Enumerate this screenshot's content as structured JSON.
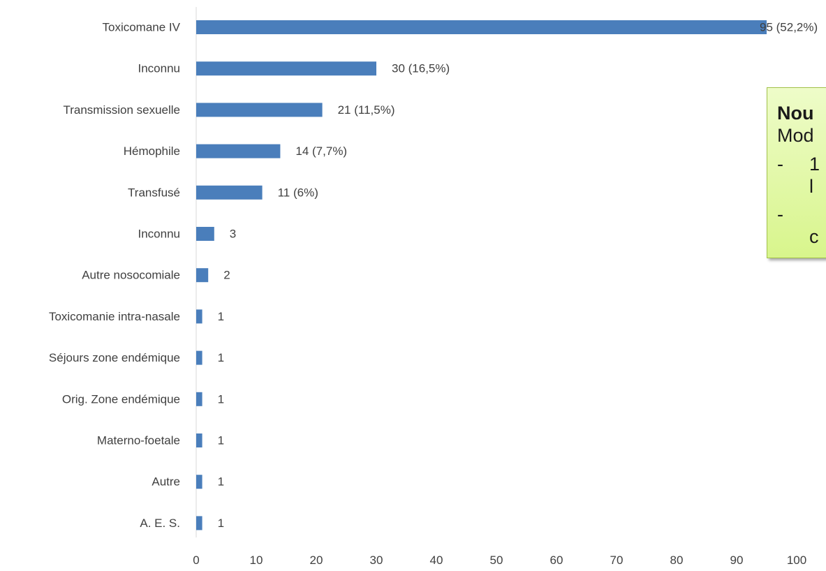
{
  "chart_data": {
    "type": "bar",
    "orientation": "horizontal",
    "categories": [
      "Toxicomane IV",
      "Inconnu",
      "Transmission sexuelle",
      "Hémophile",
      "Transfusé",
      "Inconnu",
      "Autre nosocomiale",
      "Toxicomanie intra-nasale",
      "Séjours zone endémique",
      "Orig. Zone endémique",
      "Materno-foetale",
      "Autre",
      "A. E. S."
    ],
    "values": [
      95,
      30,
      21,
      14,
      11,
      3,
      2,
      1,
      1,
      1,
      1,
      1,
      1
    ],
    "data_labels": [
      "95 (52,2%)",
      "30 (16,5%)",
      "21 (11,5%)",
      "14 (7,7%)",
      "11 (6%)",
      "3",
      "2",
      "1",
      "1",
      "1",
      "1",
      "1",
      "1"
    ],
    "xlim": [
      0,
      100
    ],
    "xticks": [
      0,
      10,
      20,
      30,
      40,
      50,
      60,
      70,
      80,
      90,
      100
    ],
    "bar_color": "#4a7ebb",
    "grid": false,
    "legend": "none"
  },
  "note_box": {
    "title": "Nou",
    "subtitle": "Mod",
    "bullet_1": "-",
    "bullet_1_text": "1",
    "bullet_1_cont": "l",
    "bullet_2": "-",
    "bullet_2_text": "",
    "bullet_2_cont": "c"
  }
}
